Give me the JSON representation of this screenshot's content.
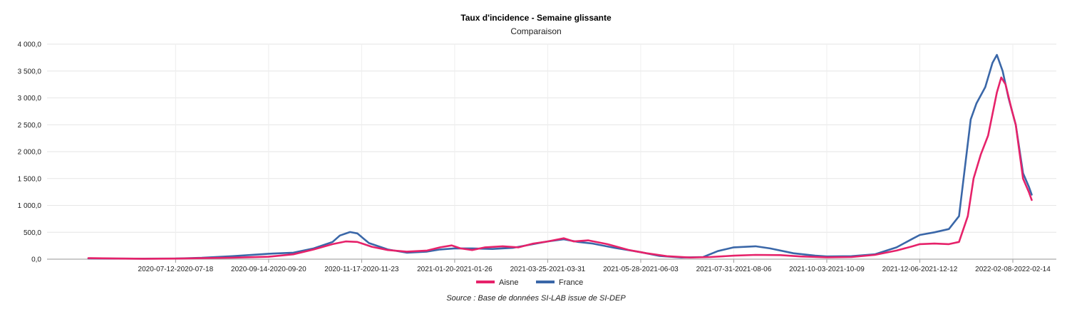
{
  "chart_data": {
    "type": "line",
    "title": "Taux d'incidence - Semaine glissante",
    "subtitle": "Comparaison",
    "source": "Source : Base de données SI-LAB issue de SI-DEP",
    "ylim": [
      0,
      4000
    ],
    "y_ticks": [
      "0,0",
      "500,0",
      "1 000,0",
      "1 500,0",
      "2 000,0",
      "2 500,0",
      "3 000,0",
      "3 500,0",
      "4 000,0"
    ],
    "y_tick_values": [
      0,
      500,
      1000,
      1500,
      2000,
      2500,
      3000,
      3500,
      4000
    ],
    "x_tick_labels": [
      "2020-07-12-2020-07-18",
      "2020-09-14-2020-09-20",
      "2020-11-17-2020-11-23",
      "2021-01-20-2021-01-26",
      "2021-03-25-2021-03-31",
      "2021-05-28-2021-06-03",
      "2021-07-31-2021-08-06",
      "2021-10-03-2021-10-09",
      "2021-12-06-2021-12-12",
      "2022-02-08-2022-02-14"
    ],
    "x_tick_dates": [
      "2020-07-12",
      "2020-09-14",
      "2020-11-17",
      "2021-01-20",
      "2021-03-25",
      "2021-05-28",
      "2021-07-31",
      "2021-10-03",
      "2021-12-06",
      "2022-02-08"
    ],
    "x_range": [
      "2020-05-13",
      "2022-02-08"
    ],
    "grid": true,
    "legend_position": "bottom",
    "series": [
      {
        "name": "Aisne",
        "color": "#e6226a",
        "points": [
          [
            "2020-05-13",
            20
          ],
          [
            "2020-06-01",
            12
          ],
          [
            "2020-06-20",
            8
          ],
          [
            "2020-07-12",
            10
          ],
          [
            "2020-07-30",
            18
          ],
          [
            "2020-08-20",
            28
          ],
          [
            "2020-09-14",
            45
          ],
          [
            "2020-10-01",
            90
          ],
          [
            "2020-10-15",
            180
          ],
          [
            "2020-10-28",
            280
          ],
          [
            "2020-11-06",
            330
          ],
          [
            "2020-11-14",
            320
          ],
          [
            "2020-11-24",
            230
          ],
          [
            "2020-12-05",
            170
          ],
          [
            "2020-12-18",
            140
          ],
          [
            "2021-01-01",
            160
          ],
          [
            "2021-01-10",
            220
          ],
          [
            "2021-01-18",
            255
          ],
          [
            "2021-01-24",
            200
          ],
          [
            "2021-02-01",
            170
          ],
          [
            "2021-02-10",
            220
          ],
          [
            "2021-02-22",
            240
          ],
          [
            "2021-03-05",
            220
          ],
          [
            "2021-03-15",
            290
          ],
          [
            "2021-03-25",
            330
          ],
          [
            "2021-04-05",
            390
          ],
          [
            "2021-04-12",
            330
          ],
          [
            "2021-04-22",
            350
          ],
          [
            "2021-05-05",
            280
          ],
          [
            "2021-05-20",
            170
          ],
          [
            "2021-06-01",
            110
          ],
          [
            "2021-06-15",
            55
          ],
          [
            "2021-07-01",
            30
          ],
          [
            "2021-07-15",
            40
          ],
          [
            "2021-07-31",
            65
          ],
          [
            "2021-08-15",
            80
          ],
          [
            "2021-09-01",
            75
          ],
          [
            "2021-09-15",
            50
          ],
          [
            "2021-10-03",
            35
          ],
          [
            "2021-10-20",
            40
          ],
          [
            "2021-11-05",
            80
          ],
          [
            "2021-11-20",
            160
          ],
          [
            "2021-12-01",
            240
          ],
          [
            "2021-12-06",
            280
          ],
          [
            "2021-12-16",
            290
          ],
          [
            "2021-12-26",
            280
          ],
          [
            "2022-01-02",
            320
          ],
          [
            "2022-01-08",
            800
          ],
          [
            "2022-01-12",
            1500
          ],
          [
            "2022-01-17",
            1950
          ],
          [
            "2022-01-22",
            2300
          ],
          [
            "2022-01-28",
            3100
          ],
          [
            "2022-01-31",
            3380
          ],
          [
            "2022-02-03",
            3250
          ],
          [
            "2022-02-07",
            2800
          ],
          [
            "2022-02-10",
            2500
          ],
          [
            "2022-02-15",
            1500
          ],
          [
            "2022-02-19",
            1250
          ],
          [
            "2022-02-21",
            1100
          ]
        ]
      },
      {
        "name": "France",
        "color": "#3a67a8",
        "points": [
          [
            "2020-05-13",
            15
          ],
          [
            "2020-06-01",
            10
          ],
          [
            "2020-06-20",
            9
          ],
          [
            "2020-07-12",
            12
          ],
          [
            "2020-07-30",
            25
          ],
          [
            "2020-08-20",
            55
          ],
          [
            "2020-09-14",
            100
          ],
          [
            "2020-10-01",
            120
          ],
          [
            "2020-10-15",
            200
          ],
          [
            "2020-10-28",
            320
          ],
          [
            "2020-11-02",
            440
          ],
          [
            "2020-11-09",
            505
          ],
          [
            "2020-11-14",
            480
          ],
          [
            "2020-11-22",
            300
          ],
          [
            "2020-12-05",
            180
          ],
          [
            "2020-12-18",
            120
          ],
          [
            "2021-01-01",
            140
          ],
          [
            "2021-01-10",
            180
          ],
          [
            "2021-01-20",
            200
          ],
          [
            "2021-02-01",
            200
          ],
          [
            "2021-02-15",
            190
          ],
          [
            "2021-03-01",
            210
          ],
          [
            "2021-03-15",
            280
          ],
          [
            "2021-03-25",
            330
          ],
          [
            "2021-04-05",
            370
          ],
          [
            "2021-04-15",
            320
          ],
          [
            "2021-04-25",
            290
          ],
          [
            "2021-05-10",
            210
          ],
          [
            "2021-05-28",
            130
          ],
          [
            "2021-06-10",
            60
          ],
          [
            "2021-06-25",
            30
          ],
          [
            "2021-07-10",
            40
          ],
          [
            "2021-07-20",
            150
          ],
          [
            "2021-07-31",
            220
          ],
          [
            "2021-08-15",
            240
          ],
          [
            "2021-08-25",
            200
          ],
          [
            "2021-09-10",
            110
          ],
          [
            "2021-09-25",
            65
          ],
          [
            "2021-10-03",
            50
          ],
          [
            "2021-10-20",
            55
          ],
          [
            "2021-11-05",
            90
          ],
          [
            "2021-11-20",
            220
          ],
          [
            "2021-12-01",
            380
          ],
          [
            "2021-12-06",
            450
          ],
          [
            "2021-12-16",
            500
          ],
          [
            "2021-12-26",
            560
          ],
          [
            "2022-01-02",
            800
          ],
          [
            "2022-01-06",
            1700
          ],
          [
            "2022-01-10",
            2600
          ],
          [
            "2022-01-14",
            2900
          ],
          [
            "2022-01-20",
            3200
          ],
          [
            "2022-01-25",
            3650
          ],
          [
            "2022-01-28",
            3800
          ],
          [
            "2022-02-01",
            3500
          ],
          [
            "2022-02-05",
            3000
          ],
          [
            "2022-02-10",
            2500
          ],
          [
            "2022-02-15",
            1600
          ],
          [
            "2022-02-19",
            1350
          ],
          [
            "2022-02-21",
            1200
          ]
        ]
      }
    ]
  }
}
